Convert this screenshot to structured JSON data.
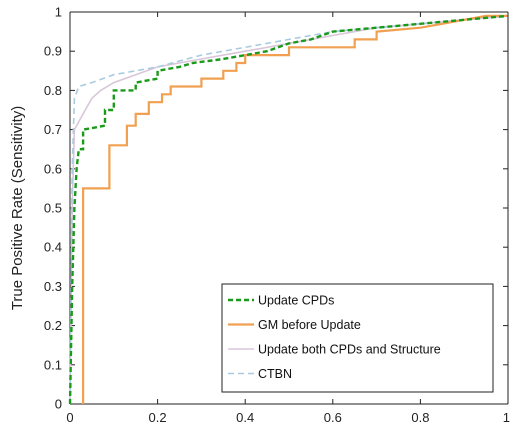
{
  "chart_data": {
    "type": "line",
    "title": "",
    "xlabel": "",
    "ylabel": "True Positive Rate (Sensitivity)",
    "xlim": [
      0,
      1
    ],
    "ylim": [
      0,
      1
    ],
    "x_ticks": [
      "0",
      "0.2",
      "0.4",
      "0.6",
      "0.8",
      "1"
    ],
    "y_ticks": [
      "0",
      "0.1",
      "0.2",
      "0.3",
      "0.4",
      "0.5",
      "0.6",
      "0.7",
      "0.8",
      "0.9",
      "1"
    ],
    "grid": false,
    "legend_position": "bottom-right",
    "series": [
      {
        "name": "Update CPDs",
        "color": "#1a9a1a",
        "style": "dashed",
        "points": [
          [
            0,
            0
          ],
          [
            0.005,
            0.3
          ],
          [
            0.01,
            0.5
          ],
          [
            0.015,
            0.6
          ],
          [
            0.02,
            0.65
          ],
          [
            0.03,
            0.65
          ],
          [
            0.03,
            0.7
          ],
          [
            0.08,
            0.71
          ],
          [
            0.08,
            0.75
          ],
          [
            0.1,
            0.75
          ],
          [
            0.1,
            0.8
          ],
          [
            0.15,
            0.8
          ],
          [
            0.15,
            0.82
          ],
          [
            0.2,
            0.83
          ],
          [
            0.2,
            0.85
          ],
          [
            0.25,
            0.86
          ],
          [
            0.28,
            0.87
          ],
          [
            0.35,
            0.88
          ],
          [
            0.4,
            0.89
          ],
          [
            0.45,
            0.9
          ],
          [
            0.5,
            0.92
          ],
          [
            0.55,
            0.93
          ],
          [
            0.6,
            0.95
          ],
          [
            0.7,
            0.96
          ],
          [
            0.8,
            0.97
          ],
          [
            0.9,
            0.98
          ],
          [
            1,
            0.99
          ]
        ]
      },
      {
        "name": "GM before Update",
        "color": "#f0a050",
        "style": "solid",
        "points": [
          [
            0.03,
            0
          ],
          [
            0.03,
            0.55
          ],
          [
            0.09,
            0.55
          ],
          [
            0.09,
            0.66
          ],
          [
            0.13,
            0.66
          ],
          [
            0.13,
            0.71
          ],
          [
            0.15,
            0.71
          ],
          [
            0.15,
            0.74
          ],
          [
            0.18,
            0.74
          ],
          [
            0.18,
            0.77
          ],
          [
            0.21,
            0.77
          ],
          [
            0.21,
            0.79
          ],
          [
            0.23,
            0.79
          ],
          [
            0.23,
            0.81
          ],
          [
            0.3,
            0.81
          ],
          [
            0.3,
            0.83
          ],
          [
            0.35,
            0.83
          ],
          [
            0.35,
            0.85
          ],
          [
            0.38,
            0.85
          ],
          [
            0.38,
            0.87
          ],
          [
            0.4,
            0.87
          ],
          [
            0.4,
            0.89
          ],
          [
            0.5,
            0.89
          ],
          [
            0.5,
            0.91
          ],
          [
            0.55,
            0.91
          ],
          [
            0.65,
            0.91
          ],
          [
            0.65,
            0.93
          ],
          [
            0.7,
            0.93
          ],
          [
            0.7,
            0.95
          ],
          [
            0.8,
            0.96
          ],
          [
            0.85,
            0.97
          ],
          [
            0.9,
            0.98
          ],
          [
            0.95,
            0.99
          ],
          [
            1,
            0.99
          ]
        ]
      },
      {
        "name": "Update both CPDs and Structure",
        "color": "#d9c6d9",
        "style": "solid",
        "points": [
          [
            0,
            0
          ],
          [
            0.005,
            0.5
          ],
          [
            0.01,
            0.7
          ],
          [
            0.03,
            0.74
          ],
          [
            0.05,
            0.78
          ],
          [
            0.07,
            0.8
          ],
          [
            0.1,
            0.82
          ],
          [
            0.15,
            0.84
          ],
          [
            0.2,
            0.86
          ],
          [
            0.3,
            0.88
          ],
          [
            0.4,
            0.9
          ],
          [
            0.5,
            0.92
          ],
          [
            0.6,
            0.94
          ],
          [
            0.7,
            0.96
          ],
          [
            0.8,
            0.97
          ],
          [
            0.9,
            0.98
          ],
          [
            1,
            0.99
          ]
        ]
      },
      {
        "name": "CTBN",
        "color": "#a9cbe0",
        "style": "dashed",
        "points": [
          [
            0,
            0
          ],
          [
            0.005,
            0.6
          ],
          [
            0.01,
            0.78
          ],
          [
            0.02,
            0.81
          ],
          [
            0.05,
            0.82
          ],
          [
            0.1,
            0.84
          ],
          [
            0.2,
            0.86
          ],
          [
            0.3,
            0.89
          ],
          [
            0.4,
            0.91
          ],
          [
            0.5,
            0.93
          ],
          [
            0.6,
            0.95
          ],
          [
            0.7,
            0.96
          ],
          [
            0.8,
            0.97
          ],
          [
            0.9,
            0.98
          ],
          [
            1,
            0.99
          ]
        ]
      }
    ]
  }
}
